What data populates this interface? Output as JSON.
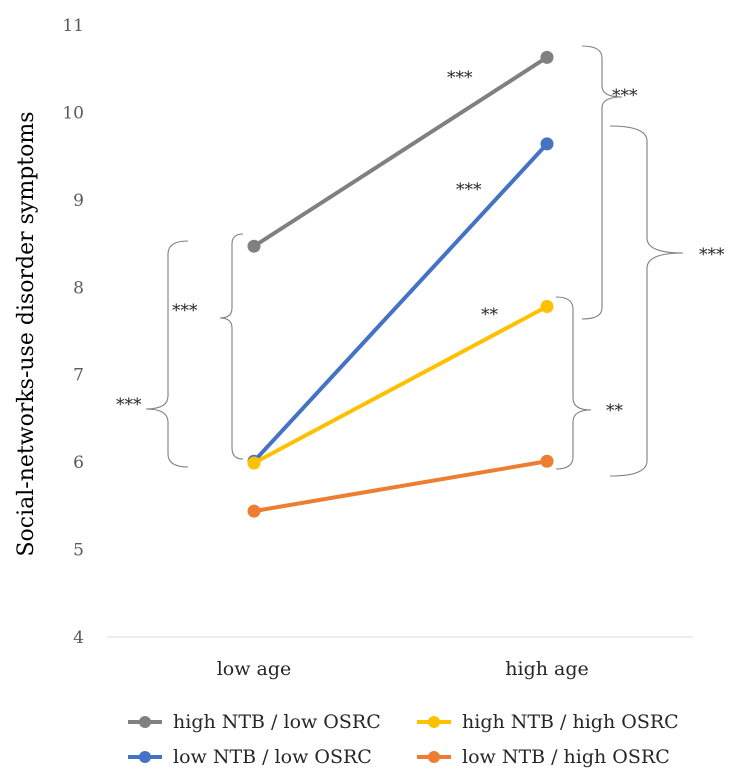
{
  "chart_data": {
    "type": "line",
    "title": "",
    "xlabel": "",
    "ylabel": "Social-networks-use disorder symptoms",
    "categories": [
      "low age",
      "high age"
    ],
    "ylim": [
      4,
      11
    ],
    "yticks": [
      4,
      5,
      6,
      7,
      8,
      9,
      10,
      11
    ],
    "grid": false,
    "legend_position": "bottom",
    "series": [
      {
        "name": "high NTB / low OSRC",
        "color": "#808080",
        "values": [
          8.47,
          10.63
        ]
      },
      {
        "name": "low NTB / low OSRC",
        "color": "#4472C4",
        "values": [
          6.01,
          9.64
        ]
      },
      {
        "name": "high NTB / high OSRC",
        "color": "#FFC000",
        "values": [
          5.99,
          7.78
        ]
      },
      {
        "name": "low NTB / high OSRC",
        "color": "#ED7D31",
        "values": [
          5.44,
          6.01
        ]
      }
    ],
    "annotations": {
      "slopes": [
        "***",
        "***",
        "**"
      ],
      "low_age_brackets": [
        "***",
        "***"
      ],
      "high_age_brackets": [
        "***",
        "***",
        "**"
      ]
    }
  }
}
